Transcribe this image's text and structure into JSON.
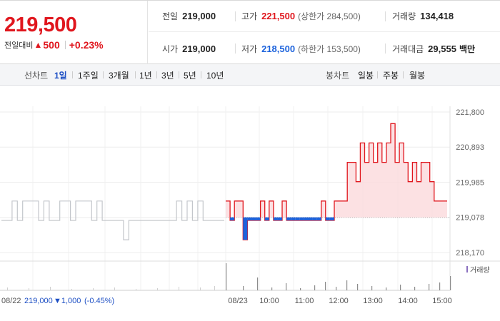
{
  "quote": {
    "price": "219,500",
    "change_label": "전일대비",
    "change_arrow": "▲",
    "change_amount": "500",
    "change_percent": "+0.23%",
    "prev_close_label": "전일",
    "prev_close": "219,000",
    "high_label": "고가",
    "high": "221,500",
    "upper_limit": "(상한가 284,500)",
    "volume_label": "거래량",
    "volume": "134,418",
    "open_label": "시가",
    "open": "219,000",
    "low_label": "저가",
    "low": "218,500",
    "lower_limit": "(하한가 153,500)",
    "value_label": "거래대금",
    "value": "29,555",
    "value_unit": "백만"
  },
  "tabs": {
    "line_label": "선차트",
    "line_tabs": [
      "1일",
      "1주일",
      "3개월",
      "1년",
      "3년",
      "5년",
      "10년"
    ],
    "candle_label": "봉차트",
    "candle_tabs": [
      "일봉",
      "주봉",
      "월봉"
    ]
  },
  "colors": {
    "up": "#e0161d",
    "down": "#1d63dc",
    "prev_day": "#c3c6cb"
  },
  "chart_data": {
    "type": "line",
    "y_ticks": [
      "221,800",
      "220,893",
      "219,985",
      "219,078",
      "218,170"
    ],
    "y_range": [
      218170,
      221800
    ],
    "reference_price": 219078,
    "x_ticks": [
      "08/23",
      "10:00",
      "11:00",
      "12:00",
      "13:00",
      "14:00",
      "15:00"
    ],
    "prev_day_summary": {
      "date": "08/22",
      "close": "219,000",
      "change": "▼1,000",
      "change_pct": "(-0.45%)"
    },
    "volume_legend": "거래량",
    "series": [
      {
        "values_prev_day": [
          219000,
          219000,
          219500,
          219000,
          219500,
          219500,
          219500,
          219000,
          219500,
          219000,
          219000,
          219500,
          219500,
          219000,
          219500,
          219500,
          219500,
          219000,
          219500,
          219000,
          219000,
          219000,
          219000,
          218500,
          219000,
          219000,
          219000,
          219000,
          219000,
          219000,
          219000,
          219000,
          219000,
          219500,
          219000,
          219500,
          219000,
          219500,
          219000,
          219000,
          219000,
          219000
        ],
        "values_today": [
          219500,
          219000,
          219500,
          219500,
          218500,
          219000,
          219000,
          219000,
          219500,
          219000,
          219500,
          219000,
          219000,
          219500,
          219000,
          219000,
          219000,
          219000,
          219000,
          219000,
          219000,
          219000,
          219500,
          219000,
          219000,
          219500,
          219500,
          219500,
          220500,
          220500,
          220000,
          221000,
          220500,
          221000,
          220500,
          221000,
          220500,
          221000,
          221500,
          220500,
          221000,
          220500,
          220000,
          220500,
          220000,
          220500,
          220500,
          220000,
          219500,
          219500,
          219500
        ]
      }
    ]
  }
}
